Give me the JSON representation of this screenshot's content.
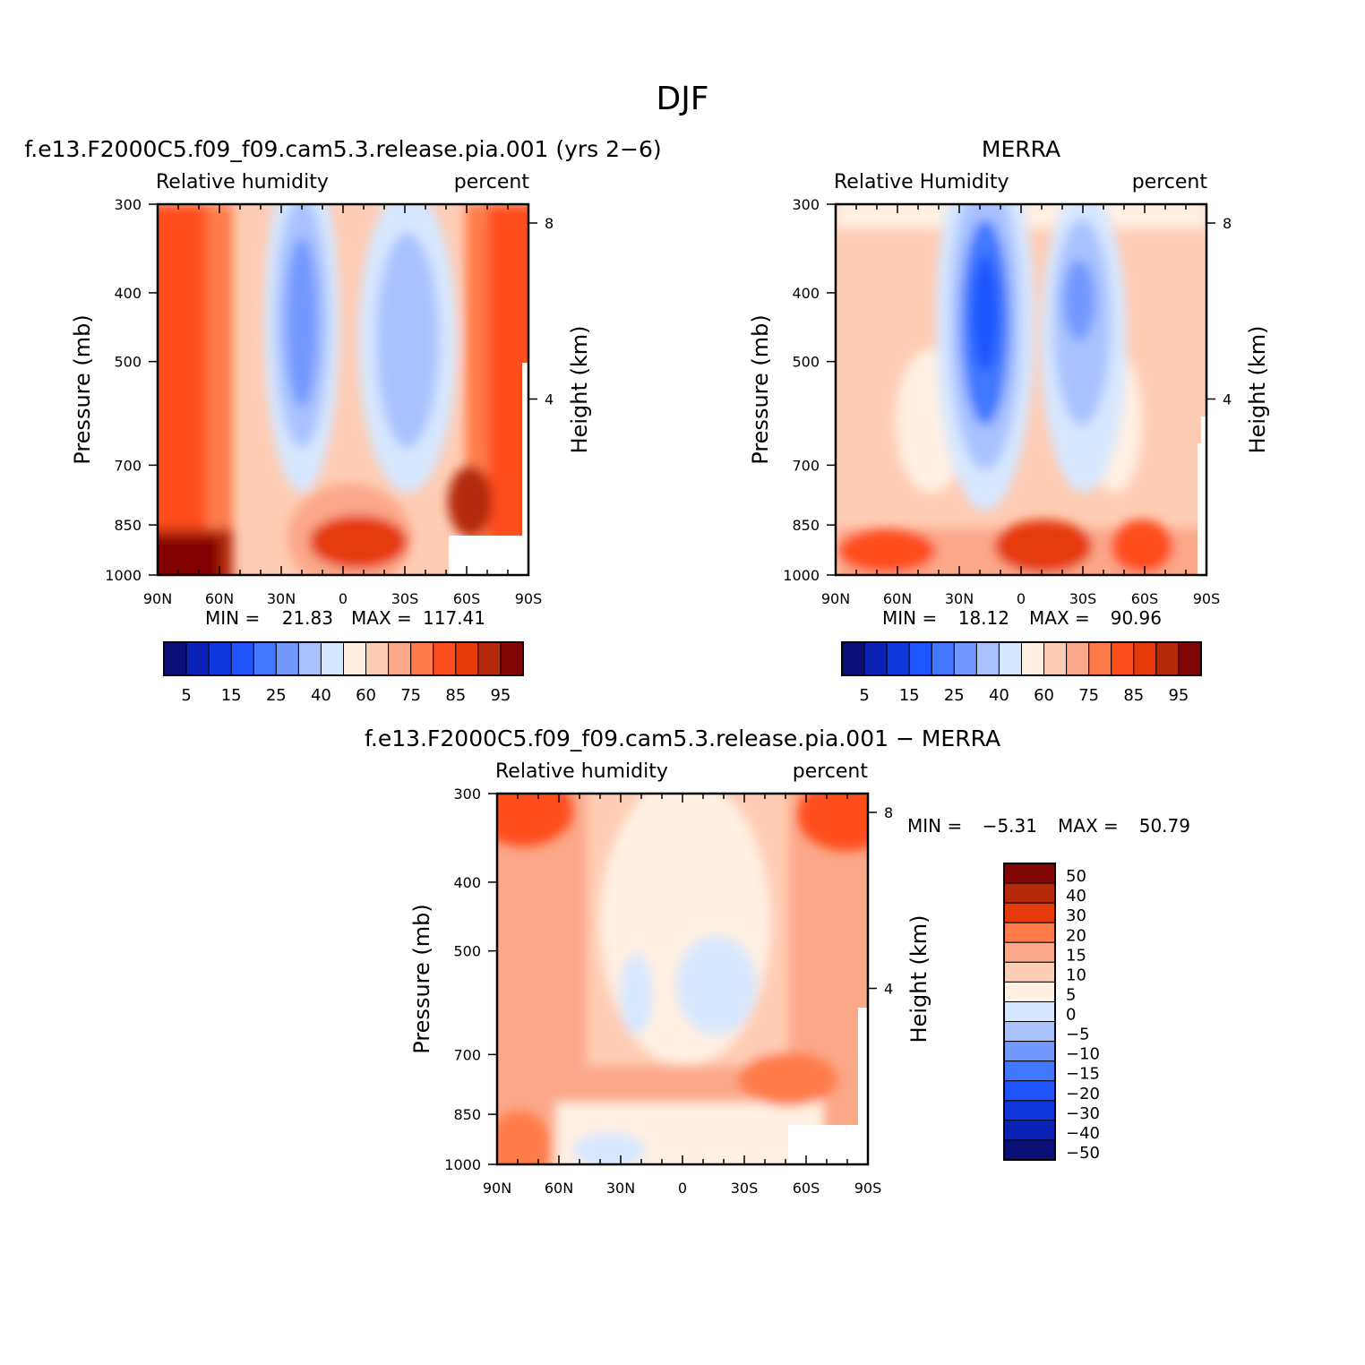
{
  "figure": {
    "title": "DJF"
  },
  "palettes": {
    "abs": [
      "#0a0f78",
      "#0a23b4",
      "#0f37dc",
      "#1e55ff",
      "#4178ff",
      "#7398ff",
      "#a9c2ff",
      "#d5e7ff",
      "#fff0e2",
      "#ffcdb5",
      "#fba889",
      "#ff7b4a",
      "#ff4e1e",
      "#e63a0a",
      "#b52a0a",
      "#820505"
    ],
    "diff": [
      "#820505",
      "#b52a0a",
      "#e63a0a",
      "#ff7b4a",
      "#fba889",
      "#ffcdb5",
      "#fff0e2",
      "#d5e7ff",
      "#a9c2ff",
      "#7398ff",
      "#4178ff",
      "#1e55ff",
      "#0f37dc",
      "#0a23b4",
      "#0a0f78"
    ]
  },
  "chart_data": [
    {
      "type": "heatmap",
      "title": "f.e13.F2000C5.f09_f09.cam5.3.release.pia.001 (yrs 2−6)",
      "left_label": "Relative humidity",
      "right_label": "percent",
      "xlabel": "",
      "ylabel": "Pressure (mb)",
      "y2label": "Height (km)",
      "x_ticks": [
        "90N",
        "60N",
        "30N",
        "0",
        "30S",
        "60S",
        "90S"
      ],
      "y_ticks": [
        "300",
        "400",
        "500",
        "700",
        "850",
        "1000"
      ],
      "y2_ticks": [
        "8",
        "4"
      ],
      "xlim": [
        90,
        -90
      ],
      "ylim": [
        1000,
        300
      ],
      "y_scale": "log",
      "min_label": "MIN =",
      "min_value": "21.83",
      "max_label": "MAX =",
      "max_value": "117.41",
      "colorbar": {
        "orientation": "horizontal",
        "levels": [
          5,
          10,
          15,
          20,
          25,
          30,
          40,
          50,
          60,
          70,
          75,
          80,
          85,
          90,
          95
        ],
        "tick_labels": [
          "5",
          "15",
          "25",
          "40",
          "60",
          "75",
          "85",
          "95"
        ]
      }
    },
    {
      "type": "heatmap",
      "title": "MERRA",
      "left_label": "Relative Humidity",
      "right_label": "percent",
      "xlabel": "",
      "ylabel": "Pressure (mb)",
      "y2label": "Height (km)",
      "x_ticks": [
        "90N",
        "60N",
        "30N",
        "0",
        "30S",
        "60S",
        "90S"
      ],
      "y_ticks": [
        "300",
        "400",
        "500",
        "700",
        "850",
        "1000"
      ],
      "y2_ticks": [
        "8",
        "4"
      ],
      "xlim": [
        90,
        -90
      ],
      "ylim": [
        1000,
        300
      ],
      "y_scale": "log",
      "min_label": "MIN =",
      "min_value": "18.12",
      "max_label": "MAX =",
      "max_value": "90.96",
      "colorbar": {
        "orientation": "horizontal",
        "levels": [
          5,
          10,
          15,
          20,
          25,
          30,
          40,
          50,
          60,
          70,
          75,
          80,
          85,
          90,
          95
        ],
        "tick_labels": [
          "5",
          "15",
          "25",
          "40",
          "60",
          "75",
          "85",
          "95"
        ]
      }
    },
    {
      "type": "heatmap",
      "title": "f.e13.F2000C5.f09_f09.cam5.3.release.pia.001 − MERRA",
      "left_label": "Relative humidity",
      "right_label": "percent",
      "xlabel": "",
      "ylabel": "Pressure (mb)",
      "y2label": "Height (km)",
      "x_ticks": [
        "90N",
        "60N",
        "30N",
        "0",
        "30S",
        "60S",
        "90S"
      ],
      "y_ticks": [
        "300",
        "400",
        "500",
        "700",
        "850",
        "1000"
      ],
      "y2_ticks": [
        "8",
        "4"
      ],
      "xlim": [
        90,
        -90
      ],
      "ylim": [
        1000,
        300
      ],
      "y_scale": "log",
      "min_label": "MIN =",
      "min_value": "−5.31",
      "max_label": "MAX =",
      "max_value": "50.79",
      "colorbar": {
        "orientation": "vertical",
        "levels": [
          50,
          40,
          30,
          20,
          15,
          10,
          5,
          0,
          -5,
          -10,
          -15,
          -20,
          -30,
          -40,
          -50
        ],
        "tick_labels": [
          "50",
          "40",
          "30",
          "20",
          "15",
          "10",
          "5",
          "0",
          "−5",
          "−10",
          "−15",
          "−20",
          "−30",
          "−40",
          "−50"
        ]
      }
    }
  ]
}
